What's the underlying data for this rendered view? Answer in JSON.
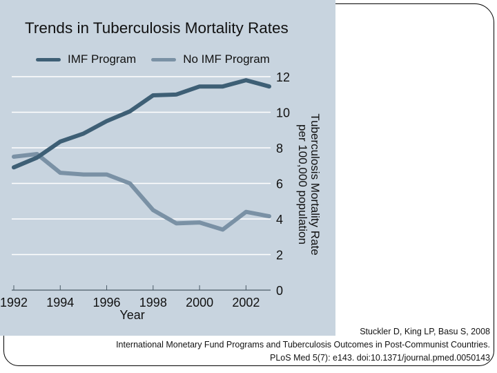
{
  "chart_data": {
    "type": "line",
    "title": "Trends in Tuberculosis Mortality Rates",
    "xlabel": "Year",
    "ylabel": "Tuberculosis Mortality Rate per 100,000 population",
    "ylabel_lines": [
      "Tuberculosis Mortality Rate",
      "per 100,000 population"
    ],
    "x": [
      1992,
      1993,
      1994,
      1995,
      1996,
      1997,
      1998,
      1999,
      2000,
      2001,
      2002,
      2003
    ],
    "xlim": [
      1992,
      2003
    ],
    "ylim": [
      0,
      12
    ],
    "x_ticks": [
      1992,
      1994,
      1996,
      1998,
      2000,
      2002
    ],
    "y_ticks": [
      0,
      2,
      4,
      6,
      8,
      10,
      12
    ],
    "y_axis_side": "right",
    "grid": true,
    "legend_position": "top",
    "series": [
      {
        "name": "IMF Program",
        "color": "#3e5f75",
        "values": [
          6.9,
          7.45,
          8.35,
          8.8,
          9.5,
          10.05,
          10.95,
          11.0,
          11.45,
          11.45,
          11.8,
          11.45
        ]
      },
      {
        "name": "No IMF Program",
        "color": "#7a91a5",
        "values": [
          7.5,
          7.65,
          6.6,
          6.5,
          6.5,
          6.0,
          4.5,
          3.75,
          3.8,
          3.4,
          4.4,
          4.15
        ]
      }
    ]
  },
  "colors": {
    "panel_background": "#c8d4df",
    "gridline": "#ffffff",
    "axis": "#4a5a66"
  },
  "citation": {
    "line1": "Stuckler D, King LP, Basu S, 2008",
    "line2": "International Monetary Fund Programs and Tuberculosis Outcomes in Post-Communist Countries.",
    "line3": "PLoS Med 5(7): e143. doi:10.1371/journal.pmed.0050143"
  }
}
